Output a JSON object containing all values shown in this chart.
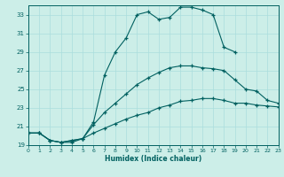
{
  "xlabel": "Humidex (Indice chaleur)",
  "bg_color": "#cceee8",
  "line_color": "#006060",
  "grid_color": "#aadddd",
  "x_min": 0,
  "x_max": 23,
  "y_min": 19,
  "y_max": 34,
  "yticks": [
    19,
    21,
    23,
    25,
    27,
    29,
    31,
    33
  ],
  "xticks": [
    0,
    1,
    2,
    3,
    4,
    5,
    6,
    7,
    8,
    9,
    10,
    11,
    12,
    13,
    14,
    15,
    16,
    17,
    18,
    19,
    20,
    21,
    22,
    23
  ],
  "s1_x": [
    0,
    1,
    2,
    3,
    4,
    5,
    6,
    7,
    8,
    9,
    10,
    11,
    12,
    13,
    14,
    15,
    16,
    17,
    18,
    19
  ],
  "s1_y": [
    20.3,
    20.3,
    19.5,
    19.3,
    19.3,
    19.7,
    21.5,
    26.5,
    29.0,
    30.5,
    33.0,
    33.3,
    32.5,
    32.7,
    33.8,
    33.8,
    33.5,
    33.0,
    29.5,
    29.0
  ],
  "s2_x": [
    0,
    1,
    2,
    3,
    4,
    5,
    6,
    7,
    8,
    9,
    10,
    11,
    12,
    13,
    14,
    15,
    16,
    17,
    18,
    19,
    20,
    21,
    22,
    23
  ],
  "s2_y": [
    20.3,
    20.3,
    19.5,
    19.3,
    19.5,
    19.7,
    21.2,
    22.5,
    23.5,
    24.5,
    25.5,
    26.2,
    26.8,
    27.3,
    27.5,
    27.5,
    27.3,
    27.2,
    27.0,
    26.0,
    25.0,
    24.8,
    23.8,
    23.5
  ],
  "s3_x": [
    0,
    1,
    2,
    3,
    4,
    5,
    6,
    7,
    8,
    9,
    10,
    11,
    12,
    13,
    14,
    15,
    16,
    17,
    18,
    19,
    20,
    21,
    22,
    23
  ],
  "s3_y": [
    20.3,
    20.3,
    19.5,
    19.3,
    19.5,
    19.7,
    20.3,
    20.8,
    21.3,
    21.8,
    22.2,
    22.5,
    23.0,
    23.3,
    23.7,
    23.8,
    24.0,
    24.0,
    23.8,
    23.5,
    23.5,
    23.3,
    23.2,
    23.1
  ]
}
